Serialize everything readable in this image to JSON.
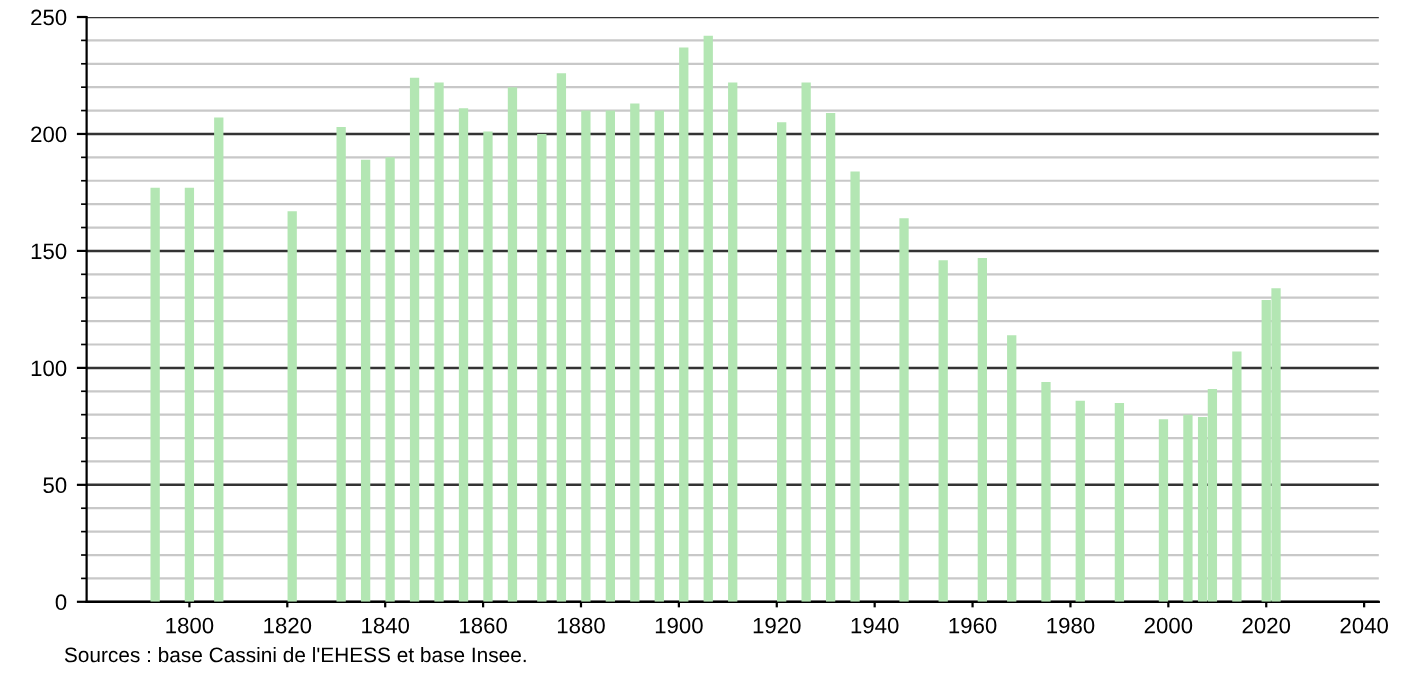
{
  "chart_data": {
    "type": "bar",
    "color": "#b3e6b3",
    "x": [
      1793,
      1800,
      1806,
      1821,
      1831,
      1836,
      1841,
      1846,
      1851,
      1856,
      1861,
      1866,
      1872,
      1876,
      1881,
      1886,
      1891,
      1896,
      1901,
      1906,
      1911,
      1921,
      1926,
      1931,
      1936,
      1946,
      1954,
      1962,
      1968,
      1975,
      1982,
      1990,
      1999,
      2004,
      2007,
      2009,
      2014,
      2020,
      2022
    ],
    "values": [
      177,
      177,
      207,
      167,
      203,
      189,
      190,
      224,
      222,
      211,
      201,
      220,
      200,
      226,
      210,
      210,
      213,
      210,
      237,
      242,
      222,
      205,
      222,
      209,
      184,
      164,
      146,
      147,
      114,
      94,
      86,
      85,
      78,
      80,
      79,
      91,
      107,
      129,
      134
    ],
    "xlim": [
      1779,
      2043
    ],
    "xticks": [
      1800,
      1820,
      1840,
      1860,
      1880,
      1900,
      1920,
      1940,
      1960,
      1980,
      2000,
      2020,
      2040
    ],
    "ylim": [
      0,
      250
    ],
    "yticks": [
      0,
      50,
      100,
      150,
      200,
      250
    ],
    "grid": "y",
    "annotations": [
      "Sources : base Cassini de l'EHESS et base Insee."
    ]
  }
}
